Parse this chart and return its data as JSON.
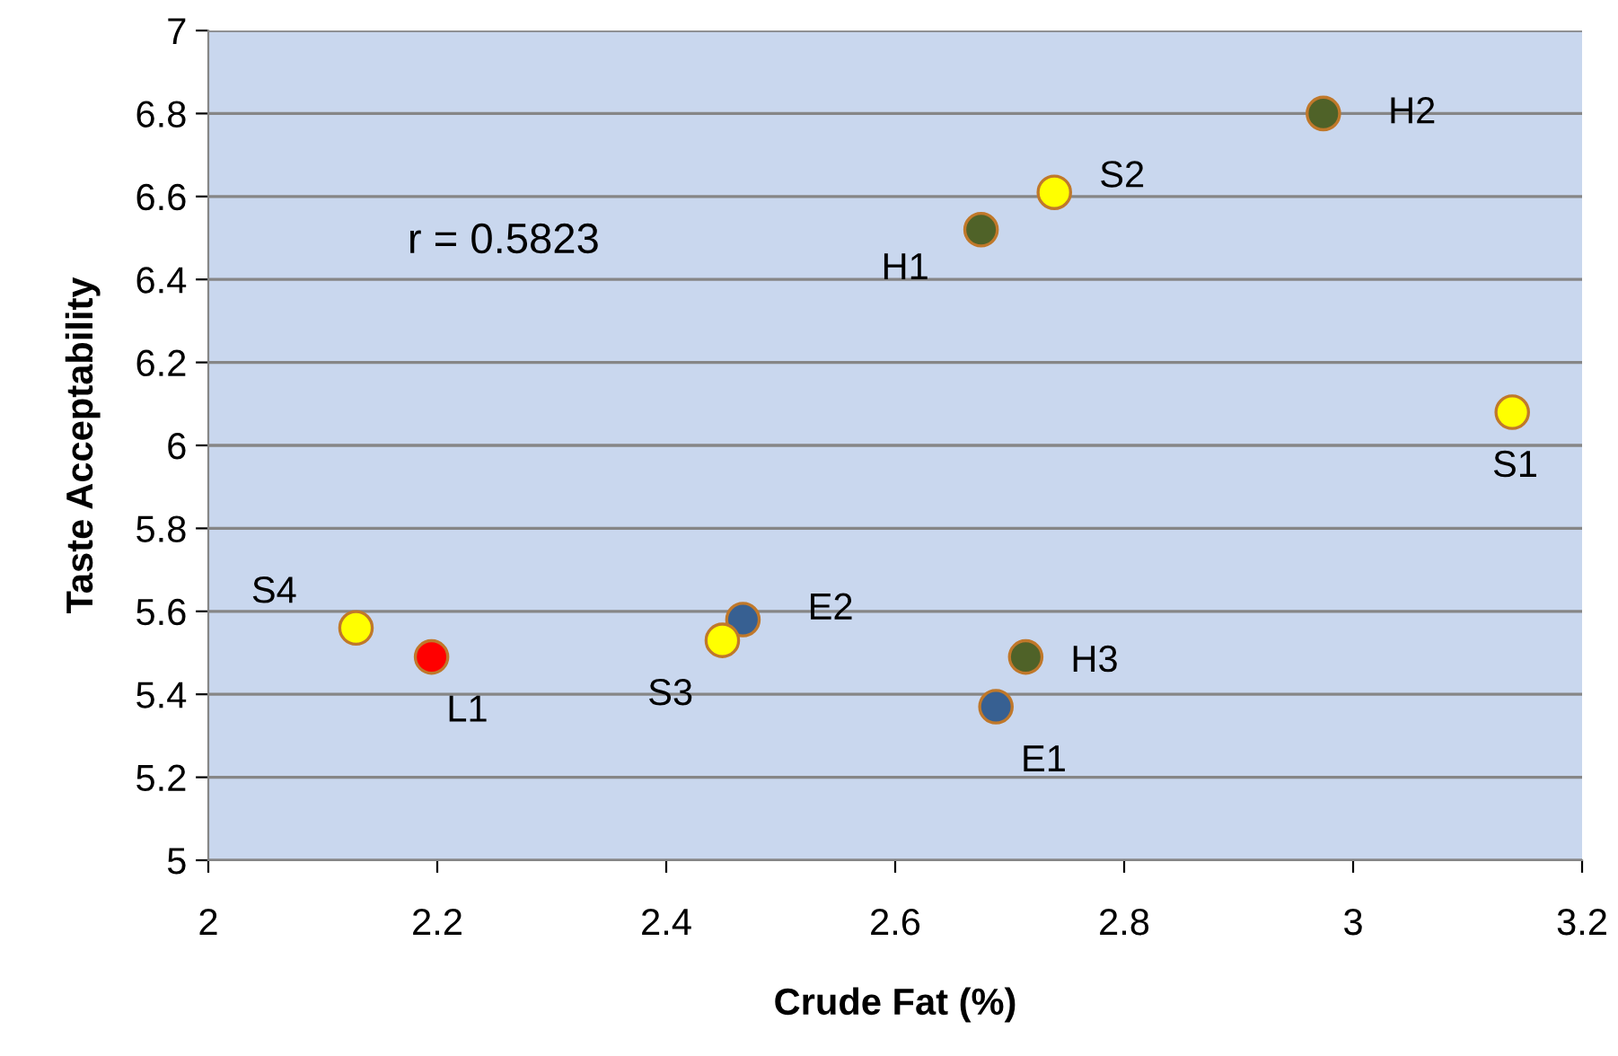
{
  "chart_data": {
    "type": "scatter",
    "xlabel": "Crude Fat (%)",
    "ylabel": "Taste Acceptability",
    "x": [
      2.974,
      2.739,
      2.675,
      3.139,
      2.129,
      2.195,
      2.467,
      2.449,
      2.714,
      2.688
    ],
    "values": [
      6.8,
      6.61,
      6.52,
      6.08,
      5.56,
      5.49,
      5.58,
      5.53,
      5.49,
      5.37
    ],
    "colors": [
      "#4f6228",
      "#ffff00",
      "#4f6228",
      "#ffff00",
      "#ffff00",
      "#ff0000",
      "#376092",
      "#ffff00",
      "#4f6228",
      "#376092"
    ],
    "annotations": [
      {
        "text": "H2",
        "x": 2.974,
        "y": 6.8
      },
      {
        "text": "S2",
        "x": 2.739,
        "y": 6.61
      },
      {
        "text": "H1",
        "x": 2.675,
        "y": 6.52
      },
      {
        "text": "S1",
        "x": 3.139,
        "y": 6.08
      },
      {
        "text": "S4",
        "x": 2.129,
        "y": 5.56
      },
      {
        "text": "L1",
        "x": 2.195,
        "y": 5.49
      },
      {
        "text": "E2",
        "x": 2.467,
        "y": 5.58
      },
      {
        "text": "S3",
        "x": 2.449,
        "y": 5.53
      },
      {
        "text": "H3",
        "x": 2.714,
        "y": 5.49
      },
      {
        "text": "E1",
        "x": 2.688,
        "y": 5.37
      },
      "r = 0.5823"
    ],
    "xlim": [
      2,
      3.2
    ],
    "xticks": [
      2,
      2.2,
      2.4,
      2.6,
      2.8,
      3,
      3.2
    ],
    "ylim": [
      5,
      7
    ],
    "yticks": [
      5,
      5.2,
      5.4,
      5.6,
      5.8,
      6,
      6.2,
      6.4,
      6.6,
      6.8,
      7
    ],
    "grid": "y",
    "marker": "circle",
    "legend": false
  }
}
